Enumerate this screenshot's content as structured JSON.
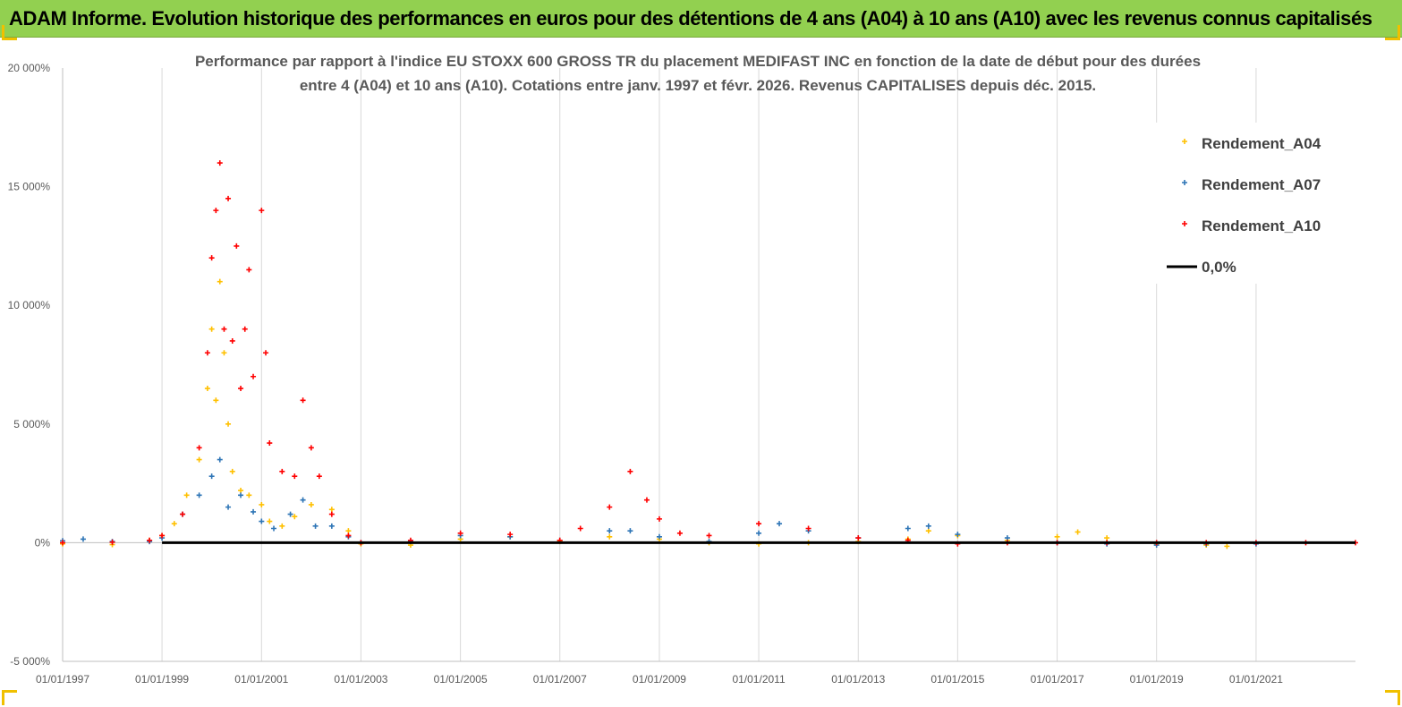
{
  "banner": {
    "title": "ADAM Informe. Evolution historique des performances en euros pour des détentions de 4 ans (A04) à 10 ans (A10) avec les revenus connus capitalisés"
  },
  "chart_data": {
    "type": "scatter",
    "title_lines": [
      "Performance par rapport à l'indice EU STOXX 600 GROSS TR  du placement MEDIFAST INC en fonction de la date de début pour des durées",
      "entre 4 (A04) et 10 ans (A10). Cotations entre janv. 1997 et févr. 2026. Revenus CAPITALISES depuis déc. 2015."
    ],
    "xlabel": "",
    "ylabel": "",
    "x_range": [
      "1997-01-01",
      "2023-01-01"
    ],
    "x_ticks": [
      "01/01/1997",
      "01/01/1999",
      "01/01/2001",
      "01/01/2003",
      "01/01/2005",
      "01/01/2007",
      "01/01/2009",
      "01/01/2011",
      "01/01/2013",
      "01/01/2015",
      "01/01/2017",
      "01/01/2019",
      "01/01/2021"
    ],
    "ylim": [
      -5000,
      20000
    ],
    "y_ticks": [
      -5000,
      0,
      5000,
      10000,
      15000,
      20000
    ],
    "y_tick_labels": [
      "-5 000%",
      "0%",
      "5 000%",
      "10 000%",
      "15 000%",
      "20 000%"
    ],
    "legend_position": "top-right",
    "grid": {
      "vertical": true,
      "horizontal": false
    },
    "series": [
      {
        "name": "Rendement_A04",
        "color": "#ffc000",
        "marker": "+",
        "points": [
          [
            "1997-01-01",
            -50
          ],
          [
            "1998-01-01",
            -80
          ],
          [
            "1998-10-01",
            100
          ],
          [
            "1999-01-01",
            300
          ],
          [
            "1999-04-01",
            800
          ],
          [
            "1999-07-01",
            2000
          ],
          [
            "1999-10-01",
            3500
          ],
          [
            "1999-12-01",
            6500
          ],
          [
            "2000-01-01",
            9000
          ],
          [
            "2000-02-01",
            6000
          ],
          [
            "2000-03-01",
            11000
          ],
          [
            "2000-04-01",
            8000
          ],
          [
            "2000-05-01",
            5000
          ],
          [
            "2000-06-01",
            3000
          ],
          [
            "2000-08-01",
            2200
          ],
          [
            "2000-10-01",
            2000
          ],
          [
            "2001-01-01",
            1600
          ],
          [
            "2001-03-01",
            900
          ],
          [
            "2001-06-01",
            700
          ],
          [
            "2001-09-01",
            1100
          ],
          [
            "2002-01-01",
            1600
          ],
          [
            "2002-06-01",
            1400
          ],
          [
            "2002-10-01",
            500
          ],
          [
            "2003-01-01",
            -50
          ],
          [
            "2004-01-01",
            -100
          ],
          [
            "2005-01-01",
            150
          ],
          [
            "2006-01-01",
            250
          ],
          [
            "2007-01-01",
            50
          ],
          [
            "2008-01-01",
            250
          ],
          [
            "2009-01-01",
            150
          ],
          [
            "2010-01-01",
            0
          ],
          [
            "2011-01-01",
            -50
          ],
          [
            "2012-01-01",
            0
          ],
          [
            "2013-01-01",
            50
          ],
          [
            "2014-01-01",
            150
          ],
          [
            "2014-06-01",
            500
          ],
          [
            "2015-01-01",
            300
          ],
          [
            "2016-01-01",
            100
          ],
          [
            "2017-01-01",
            250
          ],
          [
            "2017-06-01",
            450
          ],
          [
            "2018-01-01",
            200
          ],
          [
            "2019-01-01",
            -50
          ],
          [
            "2020-01-01",
            -100
          ],
          [
            "2020-06-01",
            -150
          ]
        ]
      },
      {
        "name": "Rendement_A07",
        "color": "#2e75b6",
        "marker": "+",
        "points": [
          [
            "1997-01-01",
            80
          ],
          [
            "1997-06-01",
            150
          ],
          [
            "1998-01-01",
            50
          ],
          [
            "1998-10-01",
            50
          ],
          [
            "1999-01-01",
            200
          ],
          [
            "1999-06-01",
            1200
          ],
          [
            "1999-10-01",
            2000
          ],
          [
            "2000-01-01",
            2800
          ],
          [
            "2000-03-01",
            3500
          ],
          [
            "2000-05-01",
            1500
          ],
          [
            "2000-08-01",
            2000
          ],
          [
            "2000-11-01",
            1300
          ],
          [
            "2001-01-01",
            900
          ],
          [
            "2001-04-01",
            600
          ],
          [
            "2001-08-01",
            1200
          ],
          [
            "2001-11-01",
            1800
          ],
          [
            "2002-02-01",
            700
          ],
          [
            "2002-06-01",
            700
          ],
          [
            "2002-10-01",
            250
          ],
          [
            "2003-01-01",
            0
          ],
          [
            "2004-01-01",
            50
          ],
          [
            "2005-01-01",
            300
          ],
          [
            "2006-01-01",
            250
          ],
          [
            "2007-01-01",
            100
          ],
          [
            "2008-01-01",
            500
          ],
          [
            "2008-06-01",
            500
          ],
          [
            "2009-01-01",
            250
          ],
          [
            "2010-01-01",
            50
          ],
          [
            "2011-01-01",
            400
          ],
          [
            "2011-06-01",
            800
          ],
          [
            "2012-01-01",
            500
          ],
          [
            "2013-01-01",
            200
          ],
          [
            "2014-01-01",
            600
          ],
          [
            "2014-06-01",
            700
          ],
          [
            "2015-01-01",
            350
          ],
          [
            "2016-01-01",
            200
          ],
          [
            "2017-01-01",
            0
          ],
          [
            "2018-01-01",
            -50
          ],
          [
            "2019-01-01",
            -100
          ],
          [
            "2020-01-01",
            -50
          ],
          [
            "2021-01-01",
            -50
          ]
        ]
      },
      {
        "name": "Rendement_A10",
        "color": "#ff0000",
        "marker": "+",
        "points": [
          [
            "1997-01-01",
            0
          ],
          [
            "1998-01-01",
            20
          ],
          [
            "1998-10-01",
            100
          ],
          [
            "1999-01-01",
            300
          ],
          [
            "1999-06-01",
            1200
          ],
          [
            "1999-10-01",
            4000
          ],
          [
            "1999-12-01",
            8000
          ],
          [
            "2000-01-01",
            12000
          ],
          [
            "2000-02-01",
            14000
          ],
          [
            "2000-03-01",
            16000
          ],
          [
            "2000-04-01",
            9000
          ],
          [
            "2000-05-01",
            14500
          ],
          [
            "2000-06-01",
            8500
          ],
          [
            "2000-07-01",
            12500
          ],
          [
            "2000-08-01",
            6500
          ],
          [
            "2000-09-01",
            9000
          ],
          [
            "2000-10-01",
            11500
          ],
          [
            "2000-11-01",
            7000
          ],
          [
            "2001-01-01",
            14000
          ],
          [
            "2001-02-01",
            8000
          ],
          [
            "2001-03-01",
            4200
          ],
          [
            "2001-06-01",
            3000
          ],
          [
            "2001-09-01",
            2800
          ],
          [
            "2001-11-01",
            6000
          ],
          [
            "2002-01-01",
            4000
          ],
          [
            "2002-03-01",
            2800
          ],
          [
            "2002-06-01",
            1200
          ],
          [
            "2002-10-01",
            300
          ],
          [
            "2003-01-01",
            0
          ],
          [
            "2004-01-01",
            100
          ],
          [
            "2005-01-01",
            400
          ],
          [
            "2006-01-01",
            350
          ],
          [
            "2007-01-01",
            100
          ],
          [
            "2007-06-01",
            600
          ],
          [
            "2008-01-01",
            1500
          ],
          [
            "2008-06-01",
            3000
          ],
          [
            "2008-10-01",
            1800
          ],
          [
            "2009-01-01",
            1000
          ],
          [
            "2009-06-01",
            400
          ],
          [
            "2010-01-01",
            300
          ],
          [
            "2011-01-01",
            800
          ],
          [
            "2012-01-01",
            600
          ],
          [
            "2013-01-01",
            200
          ],
          [
            "2014-01-01",
            100
          ],
          [
            "2015-01-01",
            -50
          ],
          [
            "2016-01-01",
            0
          ],
          [
            "2017-01-01",
            0
          ],
          [
            "2018-01-01",
            0
          ],
          [
            "2019-01-01",
            0
          ],
          [
            "2020-01-01",
            0
          ],
          [
            "2021-01-01",
            0
          ],
          [
            "2022-01-01",
            0
          ],
          [
            "2023-01-01",
            0
          ]
        ]
      },
      {
        "name": "0,0%",
        "color": "#000000",
        "marker": "line",
        "points": [
          [
            "1999-01-01",
            0
          ],
          [
            "2023-01-01",
            0
          ]
        ]
      }
    ]
  }
}
